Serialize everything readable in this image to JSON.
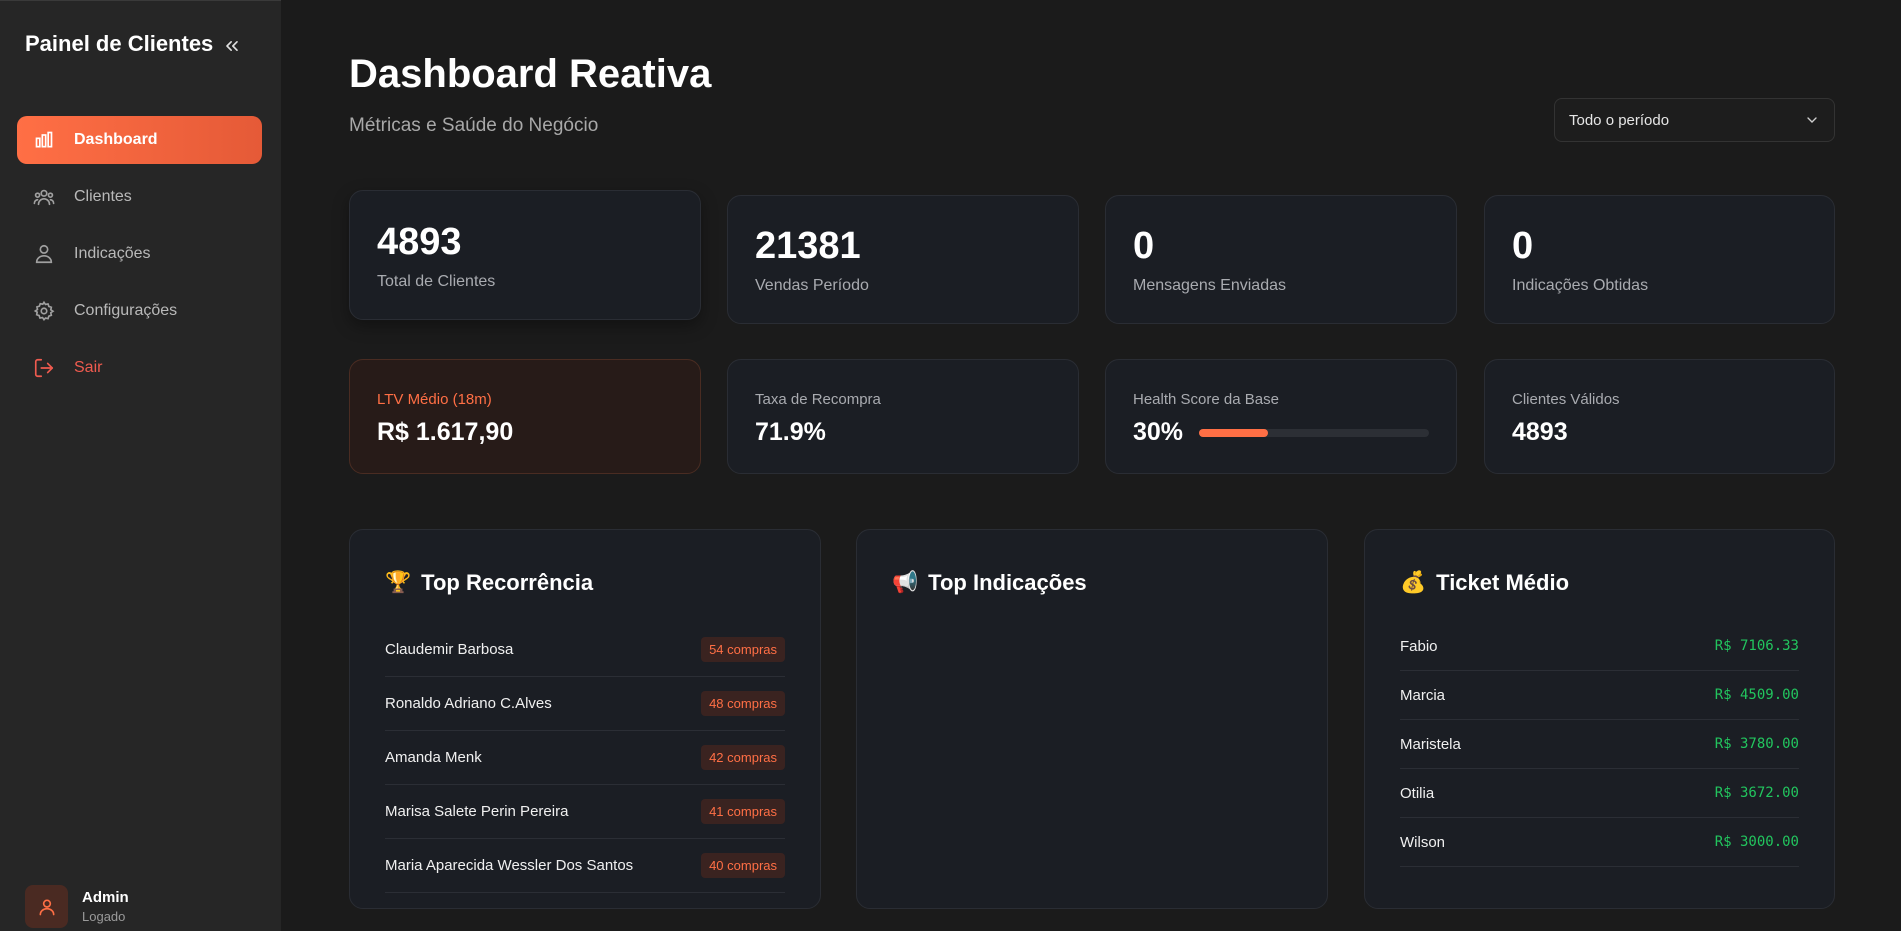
{
  "sidebar": {
    "brand": "Painel de Clientes",
    "items": [
      {
        "label": "Dashboard",
        "icon": "bar-chart-icon",
        "active": true
      },
      {
        "label": "Clientes",
        "icon": "users-icon"
      },
      {
        "label": "Indicações",
        "icon": "user-group-icon"
      },
      {
        "label": "Configurações",
        "icon": "gear-icon"
      },
      {
        "label": "Sair",
        "icon": "logout-icon"
      }
    ],
    "user": {
      "name": "Admin",
      "status": "Logado"
    }
  },
  "header": {
    "title": "Dashboard Reativa",
    "subtitle": "Métricas e Saúde do Negócio",
    "period": "Todo o período"
  },
  "stats": [
    {
      "value": "4893",
      "label": "Total de Clientes"
    },
    {
      "value": "21381",
      "label": "Vendas Período"
    },
    {
      "value": "0",
      "label": "Mensagens Enviadas"
    },
    {
      "value": "0",
      "label": "Indicações Obtidas"
    }
  ],
  "metrics": {
    "ltv": {
      "label": "LTV Médio (18m)",
      "value": "R$ 1.617,90"
    },
    "recompra": {
      "label": "Taxa de Recompra",
      "value": "71.9%"
    },
    "health": {
      "label": "Health Score da Base",
      "value": "30%",
      "fraction": 0.3
    },
    "validos": {
      "label": "Clientes Válidos",
      "value": "4893"
    }
  },
  "colors": {
    "accent": "#ff6f45",
    "money": "#22c55e",
    "danger": "#ef5b4f"
  },
  "top_recorrencia": {
    "emoji": "🏆",
    "title": "Top Recorrência",
    "rows": [
      {
        "name": "Claudemir Barbosa",
        "badge": "54 compras"
      },
      {
        "name": "Ronaldo Adriano C.Alves",
        "badge": "48 compras"
      },
      {
        "name": "Amanda Menk",
        "badge": "42 compras"
      },
      {
        "name": "Marisa Salete Perin Pereira",
        "badge": "41 compras"
      },
      {
        "name": "Maria Aparecida Wessler Dos Santos",
        "badge": "40 compras"
      }
    ]
  },
  "top_indicacoes": {
    "emoji": "📢",
    "title": "Top Indicações"
  },
  "ticket_medio": {
    "emoji": "💰",
    "title": "Ticket Médio",
    "rows": [
      {
        "name": "Fabio",
        "value": "R$ 7106.33"
      },
      {
        "name": "Marcia",
        "value": "R$ 4509.00"
      },
      {
        "name": "Maristela",
        "value": "R$ 3780.00"
      },
      {
        "name": "Otilia",
        "value": "R$ 3672.00"
      },
      {
        "name": "Wilson",
        "value": "R$ 3000.00"
      }
    ]
  }
}
